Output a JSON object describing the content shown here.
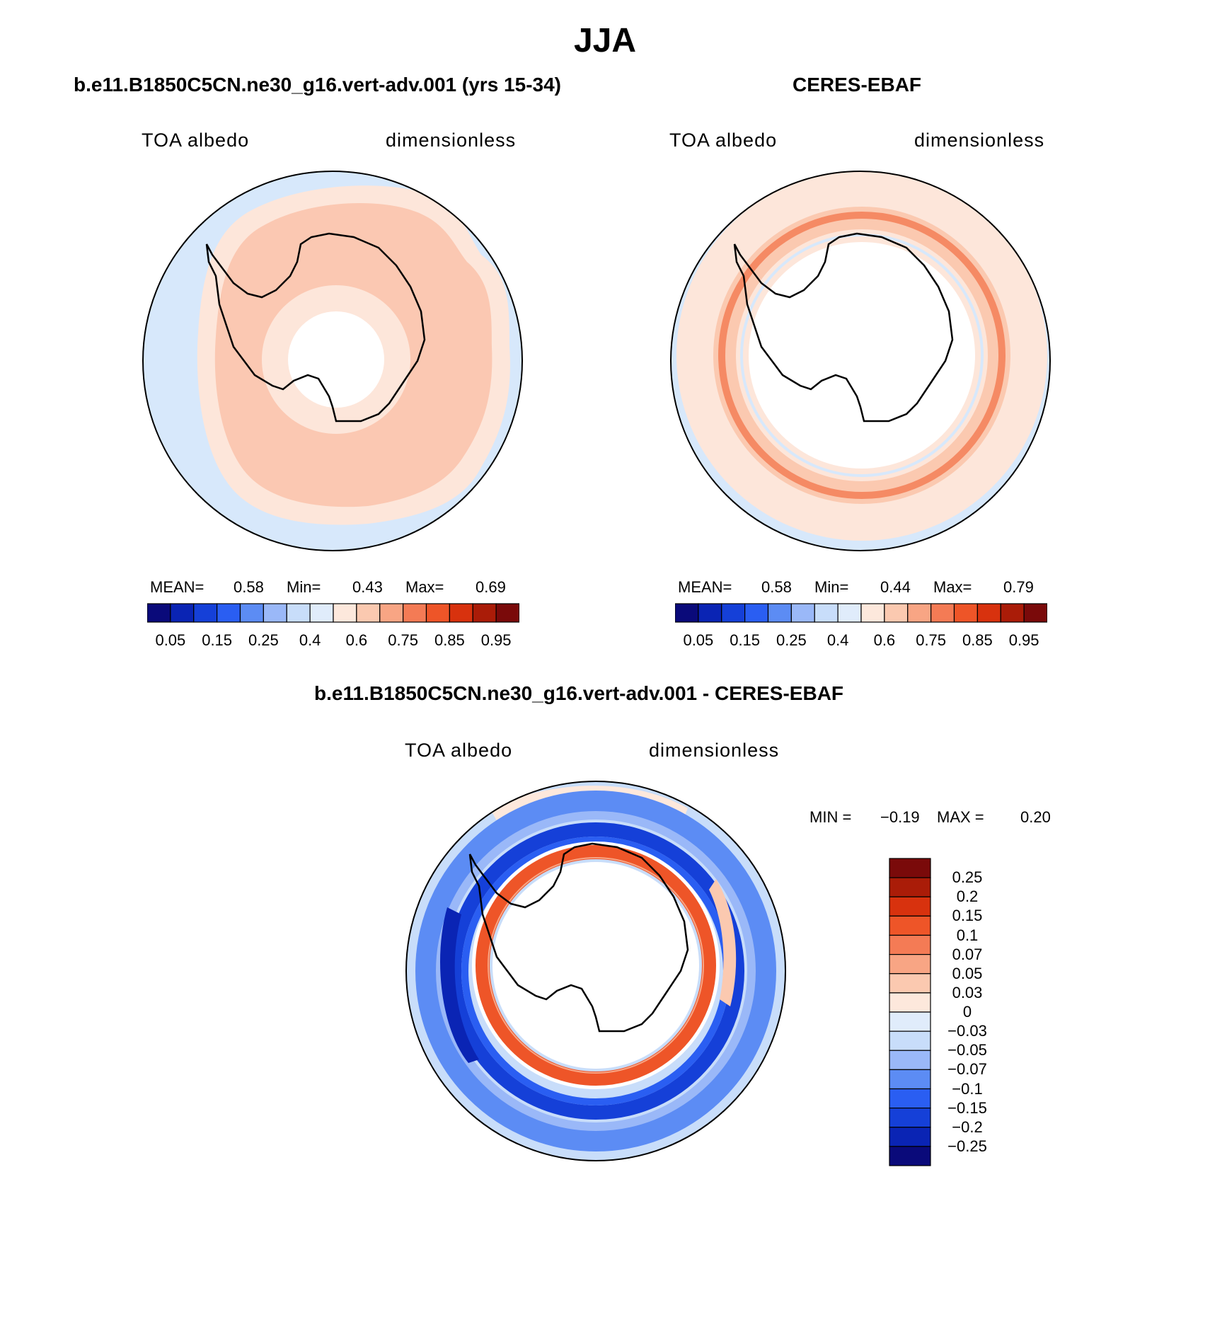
{
  "title": "JJA",
  "panels": [
    {
      "title": "b.e11.B1850C5CN.ne30_g16.vert-adv.001 (yrs 15-34)",
      "left_label": "TOA albedo",
      "right_label": "dimensionless",
      "stats": {
        "mean_label": "MEAN=",
        "mean": "0.58",
        "min_label": "Min=",
        "min": "0.43",
        "max_label": "Max=",
        "max": "0.69"
      }
    },
    {
      "title": "CERES-EBAF",
      "left_label": "TOA albedo",
      "right_label": "dimensionless",
      "stats": {
        "mean_label": "MEAN=",
        "mean": "0.58",
        "min_label": "Min=",
        "min": "0.44",
        "max_label": "Max=",
        "max": "0.79"
      }
    }
  ],
  "diff_panel": {
    "title": "b.e11.B1850C5CN.ne30_g16.vert-adv.001 - CERES-EBAF",
    "left_label": "TOA albedo",
    "right_label": "dimensionless",
    "minmax": {
      "min_label": "MIN =",
      "min": "−0.19",
      "max_label": "MAX =",
      "max": "0.20"
    }
  },
  "colorbar_abs": {
    "colors": [
      "#0a0a7a",
      "#0a24b4",
      "#1540d8",
      "#2a5ef2",
      "#5c8cf4",
      "#9ab8f8",
      "#c8ddfa",
      "#e0ecfb",
      "#fde8dc",
      "#fbc9b0",
      "#f8a584",
      "#f47b55",
      "#ee5528",
      "#d8320e",
      "#aa1c08",
      "#7a0a0a"
    ],
    "labels": [
      "0.05",
      "0.15",
      "0.25",
      "0.4",
      "0.6",
      "0.75",
      "0.85",
      "0.95"
    ]
  },
  "colorbar_diff": {
    "colors": [
      "#7a0a0a",
      "#aa1c08",
      "#d8320e",
      "#ee5528",
      "#f47b55",
      "#f8a584",
      "#fbc9b0",
      "#fde8dc",
      "#e0ecfb",
      "#c8ddfa",
      "#9ab8f8",
      "#5c8cf4",
      "#2a5ef2",
      "#1540d8",
      "#0a24b4",
      "#0a0a7a"
    ],
    "labels": [
      "0.25",
      "0.2",
      "0.15",
      "0.1",
      "0.07",
      "0.05",
      "0.03",
      "0",
      "−0.03",
      "−0.05",
      "−0.07",
      "−0.1",
      "−0.15",
      "−0.2",
      "−0.25"
    ]
  },
  "chart_data": [
    {
      "type": "map",
      "projection": "polar stereographic (south pole)",
      "field": "TOA albedo",
      "units": "dimensionless",
      "source": "b.e11.B1850C5CN.ne30_g16.vert-adv.001 (yrs 15-34)",
      "season": "JJA",
      "mean": 0.58,
      "min": 0.43,
      "max": 0.69,
      "levels": [
        0.05,
        0.1,
        0.15,
        0.2,
        0.25,
        0.3,
        0.4,
        0.5,
        0.6,
        0.7,
        0.75,
        0.8,
        0.85,
        0.9,
        0.95
      ]
    },
    {
      "type": "map",
      "projection": "polar stereographic (south pole)",
      "field": "TOA albedo",
      "units": "dimensionless",
      "source": "CERES-EBAF",
      "season": "JJA",
      "mean": 0.58,
      "min": 0.44,
      "max": 0.79,
      "levels": [
        0.05,
        0.1,
        0.15,
        0.2,
        0.25,
        0.3,
        0.4,
        0.5,
        0.6,
        0.7,
        0.75,
        0.8,
        0.85,
        0.9,
        0.95
      ]
    },
    {
      "type": "map",
      "projection": "polar stereographic (south pole)",
      "field": "TOA albedo difference",
      "units": "dimensionless",
      "source": "b.e11.B1850C5CN.ne30_g16.vert-adv.001 - CERES-EBAF",
      "season": "JJA",
      "min": -0.19,
      "max": 0.2,
      "levels": [
        -0.25,
        -0.2,
        -0.15,
        -0.1,
        -0.07,
        -0.05,
        -0.03,
        0,
        0.03,
        0.05,
        0.07,
        0.1,
        0.15,
        0.2,
        0.25
      ]
    }
  ]
}
